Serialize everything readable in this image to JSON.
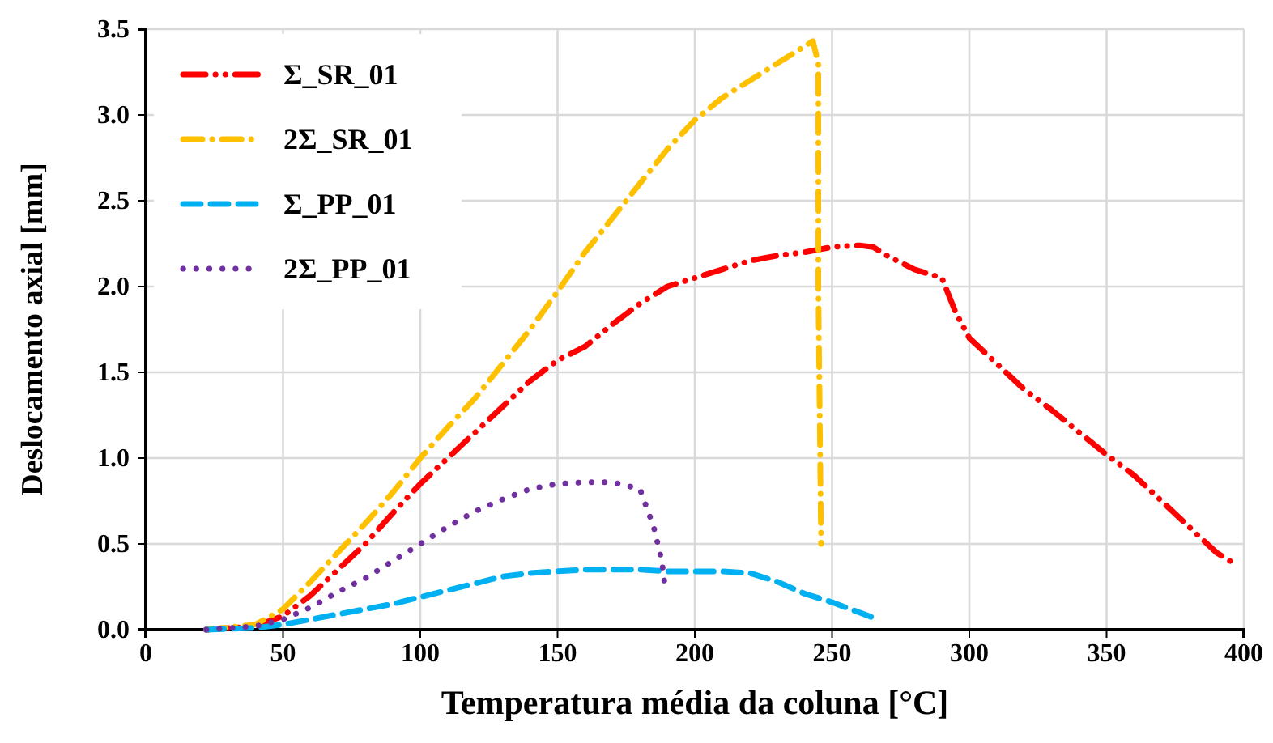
{
  "chart_data": {
    "type": "line",
    "xlabel": "Temperatura média da coluna [°C]",
    "ylabel": "Deslocamento axial [mm]",
    "xlim": [
      0,
      400
    ],
    "xticks": [
      0,
      50,
      100,
      150,
      200,
      250,
      300,
      350,
      400
    ],
    "ylim": [
      0,
      3.5
    ],
    "yticks": [
      {
        "value": 0,
        "label": "0.0"
      },
      {
        "value": 0.5,
        "label": "0.5"
      },
      {
        "value": 1,
        "label": "1.0"
      },
      {
        "value": 1.5,
        "label": "1.5"
      },
      {
        "value": 2,
        "label": "2.0"
      },
      {
        "value": 2.5,
        "label": "2.5"
      },
      {
        "value": 3,
        "label": "3.0"
      },
      {
        "value": 3.5,
        "label": "3.5"
      }
    ],
    "grid": true,
    "legend": "top left",
    "marker": "none",
    "series": [
      {
        "name": "Σ_SR_01",
        "color": "#ff0000",
        "line_style": "dashdotdot",
        "x": [
          22,
          40,
          50,
          60,
          70,
          80,
          90,
          100,
          110,
          120,
          130,
          140,
          150,
          160,
          170,
          180,
          190,
          200,
          210,
          220,
          230,
          240,
          250,
          260,
          265,
          270,
          280,
          290,
          295,
          300,
          310,
          320,
          330,
          340,
          350,
          360,
          370,
          380,
          390,
          395
        ],
        "values": [
          0,
          0.02,
          0.08,
          0.2,
          0.35,
          0.5,
          0.68,
          0.85,
          1.0,
          1.15,
          1.3,
          1.45,
          1.57,
          1.65,
          1.78,
          1.9,
          2.0,
          2.05,
          2.1,
          2.15,
          2.18,
          2.2,
          2.23,
          2.24,
          2.23,
          2.18,
          2.1,
          2.05,
          1.85,
          1.7,
          1.55,
          1.4,
          1.28,
          1.15,
          1.02,
          0.9,
          0.75,
          0.6,
          0.45,
          0.4
        ]
      },
      {
        "name": "2Σ_SR_01",
        "color": "#ffc000",
        "line_style": "dashdot",
        "x": [
          22,
          40,
          50,
          60,
          70,
          80,
          90,
          100,
          110,
          120,
          130,
          140,
          150,
          160,
          170,
          180,
          190,
          200,
          210,
          220,
          230,
          240,
          243,
          245,
          245,
          246
        ],
        "values": [
          0,
          0.03,
          0.12,
          0.28,
          0.45,
          0.62,
          0.8,
          1.0,
          1.18,
          1.35,
          1.55,
          1.75,
          1.97,
          2.2,
          2.4,
          2.6,
          2.8,
          2.97,
          3.1,
          3.2,
          3.3,
          3.4,
          3.43,
          3.3,
          2.0,
          0.5
        ]
      },
      {
        "name": "Σ_PP_01",
        "color": "#00b0f0",
        "line_style": "dashed",
        "x": [
          22,
          40,
          50,
          60,
          70,
          80,
          90,
          100,
          110,
          120,
          130,
          140,
          150,
          160,
          170,
          180,
          190,
          200,
          210,
          220,
          230,
          240,
          250,
          260,
          265
        ],
        "values": [
          0,
          0.01,
          0.03,
          0.06,
          0.09,
          0.12,
          0.15,
          0.19,
          0.23,
          0.27,
          0.31,
          0.33,
          0.34,
          0.35,
          0.35,
          0.35,
          0.34,
          0.34,
          0.34,
          0.33,
          0.28,
          0.21,
          0.16,
          0.1,
          0.07
        ]
      },
      {
        "name": "2Σ_PP_01",
        "color": "#7030a0",
        "line_style": "dotted",
        "x": [
          22,
          40,
          50,
          60,
          70,
          80,
          90,
          100,
          110,
          120,
          130,
          140,
          150,
          160,
          170,
          180,
          185,
          188,
          189
        ],
        "values": [
          0,
          0.02,
          0.06,
          0.13,
          0.22,
          0.3,
          0.4,
          0.5,
          0.6,
          0.69,
          0.76,
          0.82,
          0.85,
          0.86,
          0.86,
          0.82,
          0.6,
          0.4,
          0.27
        ]
      }
    ]
  }
}
